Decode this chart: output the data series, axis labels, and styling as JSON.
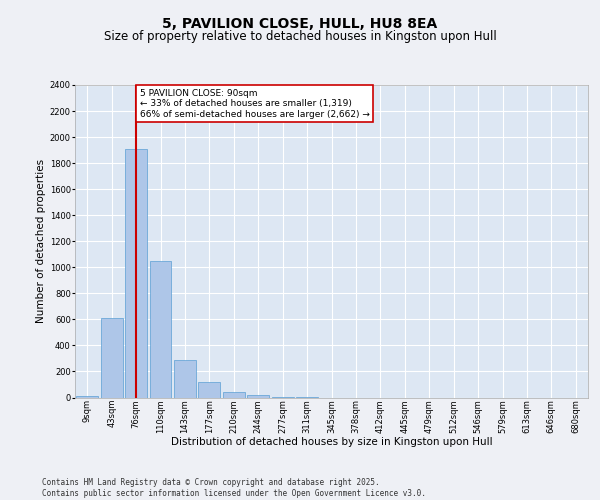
{
  "title": "5, PAVILION CLOSE, HULL, HU8 8EA",
  "subtitle": "Size of property relative to detached houses in Kingston upon Hull",
  "xlabel": "Distribution of detached houses by size in Kingston upon Hull",
  "ylabel": "Number of detached properties",
  "bar_color": "#aec6e8",
  "bar_edge_color": "#5a9fd4",
  "background_color": "#dde7f3",
  "grid_color": "#ffffff",
  "fig_color": "#eef0f5",
  "categories": [
    "9sqm",
    "43sqm",
    "76sqm",
    "110sqm",
    "143sqm",
    "177sqm",
    "210sqm",
    "244sqm",
    "277sqm",
    "311sqm",
    "345sqm",
    "378sqm",
    "412sqm",
    "445sqm",
    "479sqm",
    "512sqm",
    "546sqm",
    "579sqm",
    "613sqm",
    "646sqm",
    "680sqm"
  ],
  "values": [
    10,
    610,
    1910,
    1045,
    290,
    120,
    45,
    18,
    5,
    2,
    0,
    0,
    0,
    0,
    0,
    0,
    0,
    0,
    0,
    0,
    0
  ],
  "ylim": [
    0,
    2400
  ],
  "yticks": [
    0,
    200,
    400,
    600,
    800,
    1000,
    1200,
    1400,
    1600,
    1800,
    2000,
    2200,
    2400
  ],
  "property_line_x": 2.0,
  "annotation_title": "5 PAVILION CLOSE: 90sqm",
  "annotation_line1": "← 33% of detached houses are smaller (1,319)",
  "annotation_line2": "66% of semi-detached houses are larger (2,662) →",
  "red_color": "#cc0000",
  "footer": "Contains HM Land Registry data © Crown copyright and database right 2025.\nContains public sector information licensed under the Open Government Licence v3.0.",
  "title_fontsize": 10,
  "subtitle_fontsize": 8.5,
  "xlabel_fontsize": 7.5,
  "ylabel_fontsize": 7.5,
  "tick_fontsize": 6,
  "annotation_fontsize": 6.5,
  "footer_fontsize": 5.5
}
